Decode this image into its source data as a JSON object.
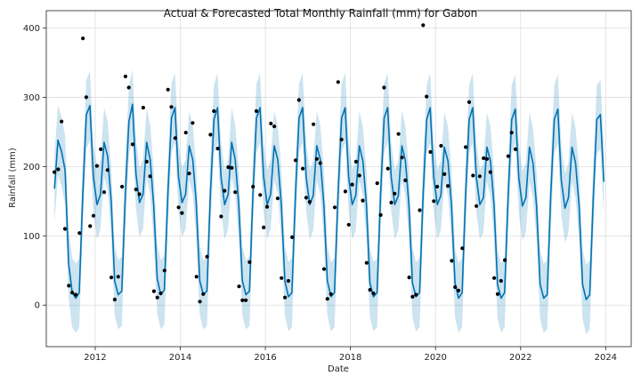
{
  "chart_data": {
    "type": "line",
    "title": "Actual & Forecasted Total Monthly Rainfall (mm) for Gabon",
    "xlabel": "Date",
    "ylabel": "Rainfall (mm)",
    "xlim": [
      2010.85,
      2024.6
    ],
    "ylim": [
      -60,
      425
    ],
    "x_ticks": [
      2012,
      2014,
      2016,
      2018,
      2020,
      2022,
      2024
    ],
    "x_tick_labels": [
      "2012",
      "2014",
      "2016",
      "2018",
      "2020",
      "2022",
      "2024"
    ],
    "y_ticks": [
      0,
      100,
      200,
      300,
      400
    ],
    "y_tick_labels": [
      "0",
      "100",
      "200",
      "300",
      "400"
    ],
    "grid": true,
    "colors": {
      "forecast": "#0072B2",
      "band": "#0072B2",
      "actual": "#000000"
    },
    "series": [
      {
        "type": "line",
        "x": [
          2011.042,
          2011.125,
          2011.208,
          2011.292,
          2011.375,
          2011.458,
          2011.542,
          2011.625,
          2011.708,
          2011.792,
          2011.875,
          2011.958,
          2012.042,
          2012.125,
          2012.208,
          2012.292,
          2012.375,
          2012.458,
          2012.542,
          2012.625,
          2012.708,
          2012.792,
          2012.875,
          2012.958,
          2013.042,
          2013.125,
          2013.208,
          2013.292,
          2013.375,
          2013.458,
          2013.542,
          2013.625,
          2013.708,
          2013.792,
          2013.875,
          2013.958,
          2014.042,
          2014.125,
          2014.208,
          2014.292,
          2014.375,
          2014.458,
          2014.542,
          2014.625,
          2014.708,
          2014.792,
          2014.875,
          2014.958,
          2015.042,
          2015.125,
          2015.208,
          2015.292,
          2015.375,
          2015.458,
          2015.542,
          2015.625,
          2015.708,
          2015.792,
          2015.875,
          2015.958,
          2016.042,
          2016.125,
          2016.208,
          2016.292,
          2016.375,
          2016.458,
          2016.542,
          2016.625,
          2016.708,
          2016.792,
          2016.875,
          2016.958,
          2017.042,
          2017.125,
          2017.208,
          2017.292,
          2017.375,
          2017.458,
          2017.542,
          2017.625,
          2017.708,
          2017.792,
          2017.875,
          2017.958,
          2018.042,
          2018.125,
          2018.208,
          2018.292,
          2018.375,
          2018.458,
          2018.542,
          2018.625,
          2018.708,
          2018.792,
          2018.875,
          2018.958,
          2019.042,
          2019.125,
          2019.208,
          2019.292,
          2019.375,
          2019.458,
          2019.542,
          2019.625,
          2019.708,
          2019.792,
          2019.875,
          2019.958,
          2020.042,
          2020.125,
          2020.208,
          2020.292,
          2020.375,
          2020.458,
          2020.542,
          2020.625,
          2020.708,
          2020.792,
          2020.875,
          2020.958,
          2021.042,
          2021.125,
          2021.208,
          2021.292,
          2021.375,
          2021.458,
          2021.542,
          2021.625,
          2021.708,
          2021.792,
          2021.875,
          2021.958,
          2022.042,
          2022.125,
          2022.208,
          2022.292,
          2022.375,
          2022.458,
          2022.542,
          2022.625,
          2022.708,
          2022.792,
          2022.875,
          2022.958,
          2023.042,
          2023.125,
          2023.208,
          2023.292,
          2023.375,
          2023.458,
          2023.542,
          2023.625,
          2023.708,
          2023.792,
          2023.875,
          2023.958
        ],
        "y": [
          168,
          238,
          222,
          195,
          60,
          18,
          10,
          18,
          160,
          275,
          288,
          185,
          145,
          160,
          235,
          215,
          150,
          35,
          15,
          20,
          160,
          265,
          290,
          190,
          148,
          160,
          235,
          210,
          145,
          38,
          15,
          22,
          162,
          270,
          285,
          185,
          148,
          160,
          230,
          210,
          148,
          35,
          15,
          20,
          160,
          268,
          285,
          185,
          145,
          160,
          235,
          210,
          145,
          35,
          15,
          20,
          160,
          270,
          285,
          185,
          145,
          160,
          230,
          210,
          145,
          35,
          12,
          18,
          160,
          270,
          285,
          185,
          145,
          158,
          230,
          210,
          145,
          35,
          12,
          18,
          160,
          270,
          285,
          185,
          145,
          158,
          230,
          208,
          145,
          32,
          12,
          18,
          160,
          270,
          285,
          185,
          145,
          158,
          230,
          208,
          145,
          32,
          12,
          18,
          160,
          268,
          285,
          185,
          145,
          158,
          228,
          208,
          145,
          32,
          10,
          18,
          160,
          268,
          285,
          185,
          145,
          155,
          228,
          208,
          145,
          30,
          10,
          18,
          158,
          268,
          283,
          183,
          143,
          155,
          228,
          205,
          143,
          30,
          10,
          15,
          158,
          268,
          283,
          180,
          140,
          155,
          228,
          205,
          143,
          30,
          8,
          15,
          155,
          268,
          275,
          178
        ]
      },
      {
        "type": "band",
        "width": 50
      },
      {
        "type": "scatter",
        "points": [
          [
            2011.04,
            192
          ],
          [
            2011.13,
            196
          ],
          [
            2011.21,
            265
          ],
          [
            2011.29,
            110
          ],
          [
            2011.38,
            28
          ],
          [
            2011.46,
            18
          ],
          [
            2011.54,
            15
          ],
          [
            2011.63,
            104
          ],
          [
            2011.71,
            385
          ],
          [
            2011.79,
            300
          ],
          [
            2011.88,
            114
          ],
          [
            2011.96,
            129
          ],
          [
            2012.04,
            201
          ],
          [
            2012.13,
            225
          ],
          [
            2012.21,
            163
          ],
          [
            2012.29,
            195
          ],
          [
            2012.38,
            40
          ],
          [
            2012.46,
            8
          ],
          [
            2012.54,
            41
          ],
          [
            2012.63,
            171
          ],
          [
            2012.71,
            330
          ],
          [
            2012.79,
            314
          ],
          [
            2012.88,
            232
          ],
          [
            2012.96,
            167
          ],
          [
            2013.04,
            160
          ],
          [
            2013.13,
            285
          ],
          [
            2013.21,
            207
          ],
          [
            2013.29,
            186
          ],
          [
            2013.38,
            20
          ],
          [
            2013.46,
            11
          ],
          [
            2013.54,
            17
          ],
          [
            2013.63,
            50
          ],
          [
            2013.71,
            311
          ],
          [
            2013.79,
            286
          ],
          [
            2013.88,
            241
          ],
          [
            2013.96,
            141
          ],
          [
            2014.04,
            133
          ],
          [
            2014.13,
            249
          ],
          [
            2014.21,
            190
          ],
          [
            2014.29,
            263
          ],
          [
            2014.38,
            41
          ],
          [
            2014.46,
            5
          ],
          [
            2014.54,
            16
          ],
          [
            2014.63,
            70
          ],
          [
            2014.71,
            246
          ],
          [
            2014.79,
            280
          ],
          [
            2014.88,
            226
          ],
          [
            2014.96,
            128
          ],
          [
            2015.04,
            165
          ],
          [
            2015.13,
            199
          ],
          [
            2015.21,
            198
          ],
          [
            2015.29,
            163
          ],
          [
            2015.38,
            27
          ],
          [
            2015.46,
            7
          ],
          [
            2015.54,
            7
          ],
          [
            2015.63,
            62
          ],
          [
            2015.71,
            171
          ],
          [
            2015.79,
            280
          ],
          [
            2015.88,
            159
          ],
          [
            2015.96,
            112
          ],
          [
            2016.04,
            142
          ],
          [
            2016.13,
            262
          ],
          [
            2016.21,
            258
          ],
          [
            2016.29,
            154
          ],
          [
            2016.38,
            39
          ],
          [
            2016.46,
            11
          ],
          [
            2016.54,
            35
          ],
          [
            2016.63,
            98
          ],
          [
            2016.71,
            209
          ],
          [
            2016.79,
            296
          ],
          [
            2016.88,
            197
          ],
          [
            2016.96,
            155
          ],
          [
            2017.04,
            149
          ],
          [
            2017.13,
            261
          ],
          [
            2017.21,
            211
          ],
          [
            2017.29,
            205
          ],
          [
            2017.38,
            52
          ],
          [
            2017.46,
            9
          ],
          [
            2017.54,
            16
          ],
          [
            2017.63,
            141
          ],
          [
            2017.71,
            322
          ],
          [
            2017.79,
            239
          ],
          [
            2017.88,
            164
          ],
          [
            2017.96,
            116
          ],
          [
            2018.04,
            174
          ],
          [
            2018.13,
            207
          ],
          [
            2018.21,
            187
          ],
          [
            2018.29,
            151
          ],
          [
            2018.38,
            61
          ],
          [
            2018.46,
            22
          ],
          [
            2018.54,
            17
          ],
          [
            2018.63,
            176
          ],
          [
            2018.71,
            130
          ],
          [
            2018.79,
            314
          ],
          [
            2018.88,
            197
          ],
          [
            2018.96,
            148
          ],
          [
            2019.04,
            161
          ],
          [
            2019.13,
            247
          ],
          [
            2019.21,
            213
          ],
          [
            2019.29,
            180
          ],
          [
            2019.38,
            40
          ],
          [
            2019.46,
            12
          ],
          [
            2019.54,
            15
          ],
          [
            2019.63,
            137
          ],
          [
            2019.71,
            404
          ],
          [
            2019.79,
            301
          ],
          [
            2019.88,
            221
          ],
          [
            2019.96,
            150
          ],
          [
            2020.04,
            171
          ],
          [
            2020.13,
            230
          ],
          [
            2020.21,
            189
          ],
          [
            2020.29,
            172
          ],
          [
            2020.38,
            64
          ],
          [
            2020.46,
            26
          ],
          [
            2020.54,
            21
          ],
          [
            2020.63,
            82
          ],
          [
            2020.71,
            228
          ],
          [
            2020.79,
            293
          ],
          [
            2020.88,
            187
          ],
          [
            2020.96,
            143
          ],
          [
            2021.04,
            186
          ],
          [
            2021.13,
            212
          ],
          [
            2021.21,
            211
          ],
          [
            2021.29,
            192
          ],
          [
            2021.38,
            39
          ],
          [
            2021.46,
            16
          ],
          [
            2021.54,
            35
          ],
          [
            2021.63,
            65
          ],
          [
            2021.71,
            215
          ],
          [
            2021.79,
            249
          ],
          [
            2021.88,
            225
          ]
        ]
      }
    ]
  }
}
